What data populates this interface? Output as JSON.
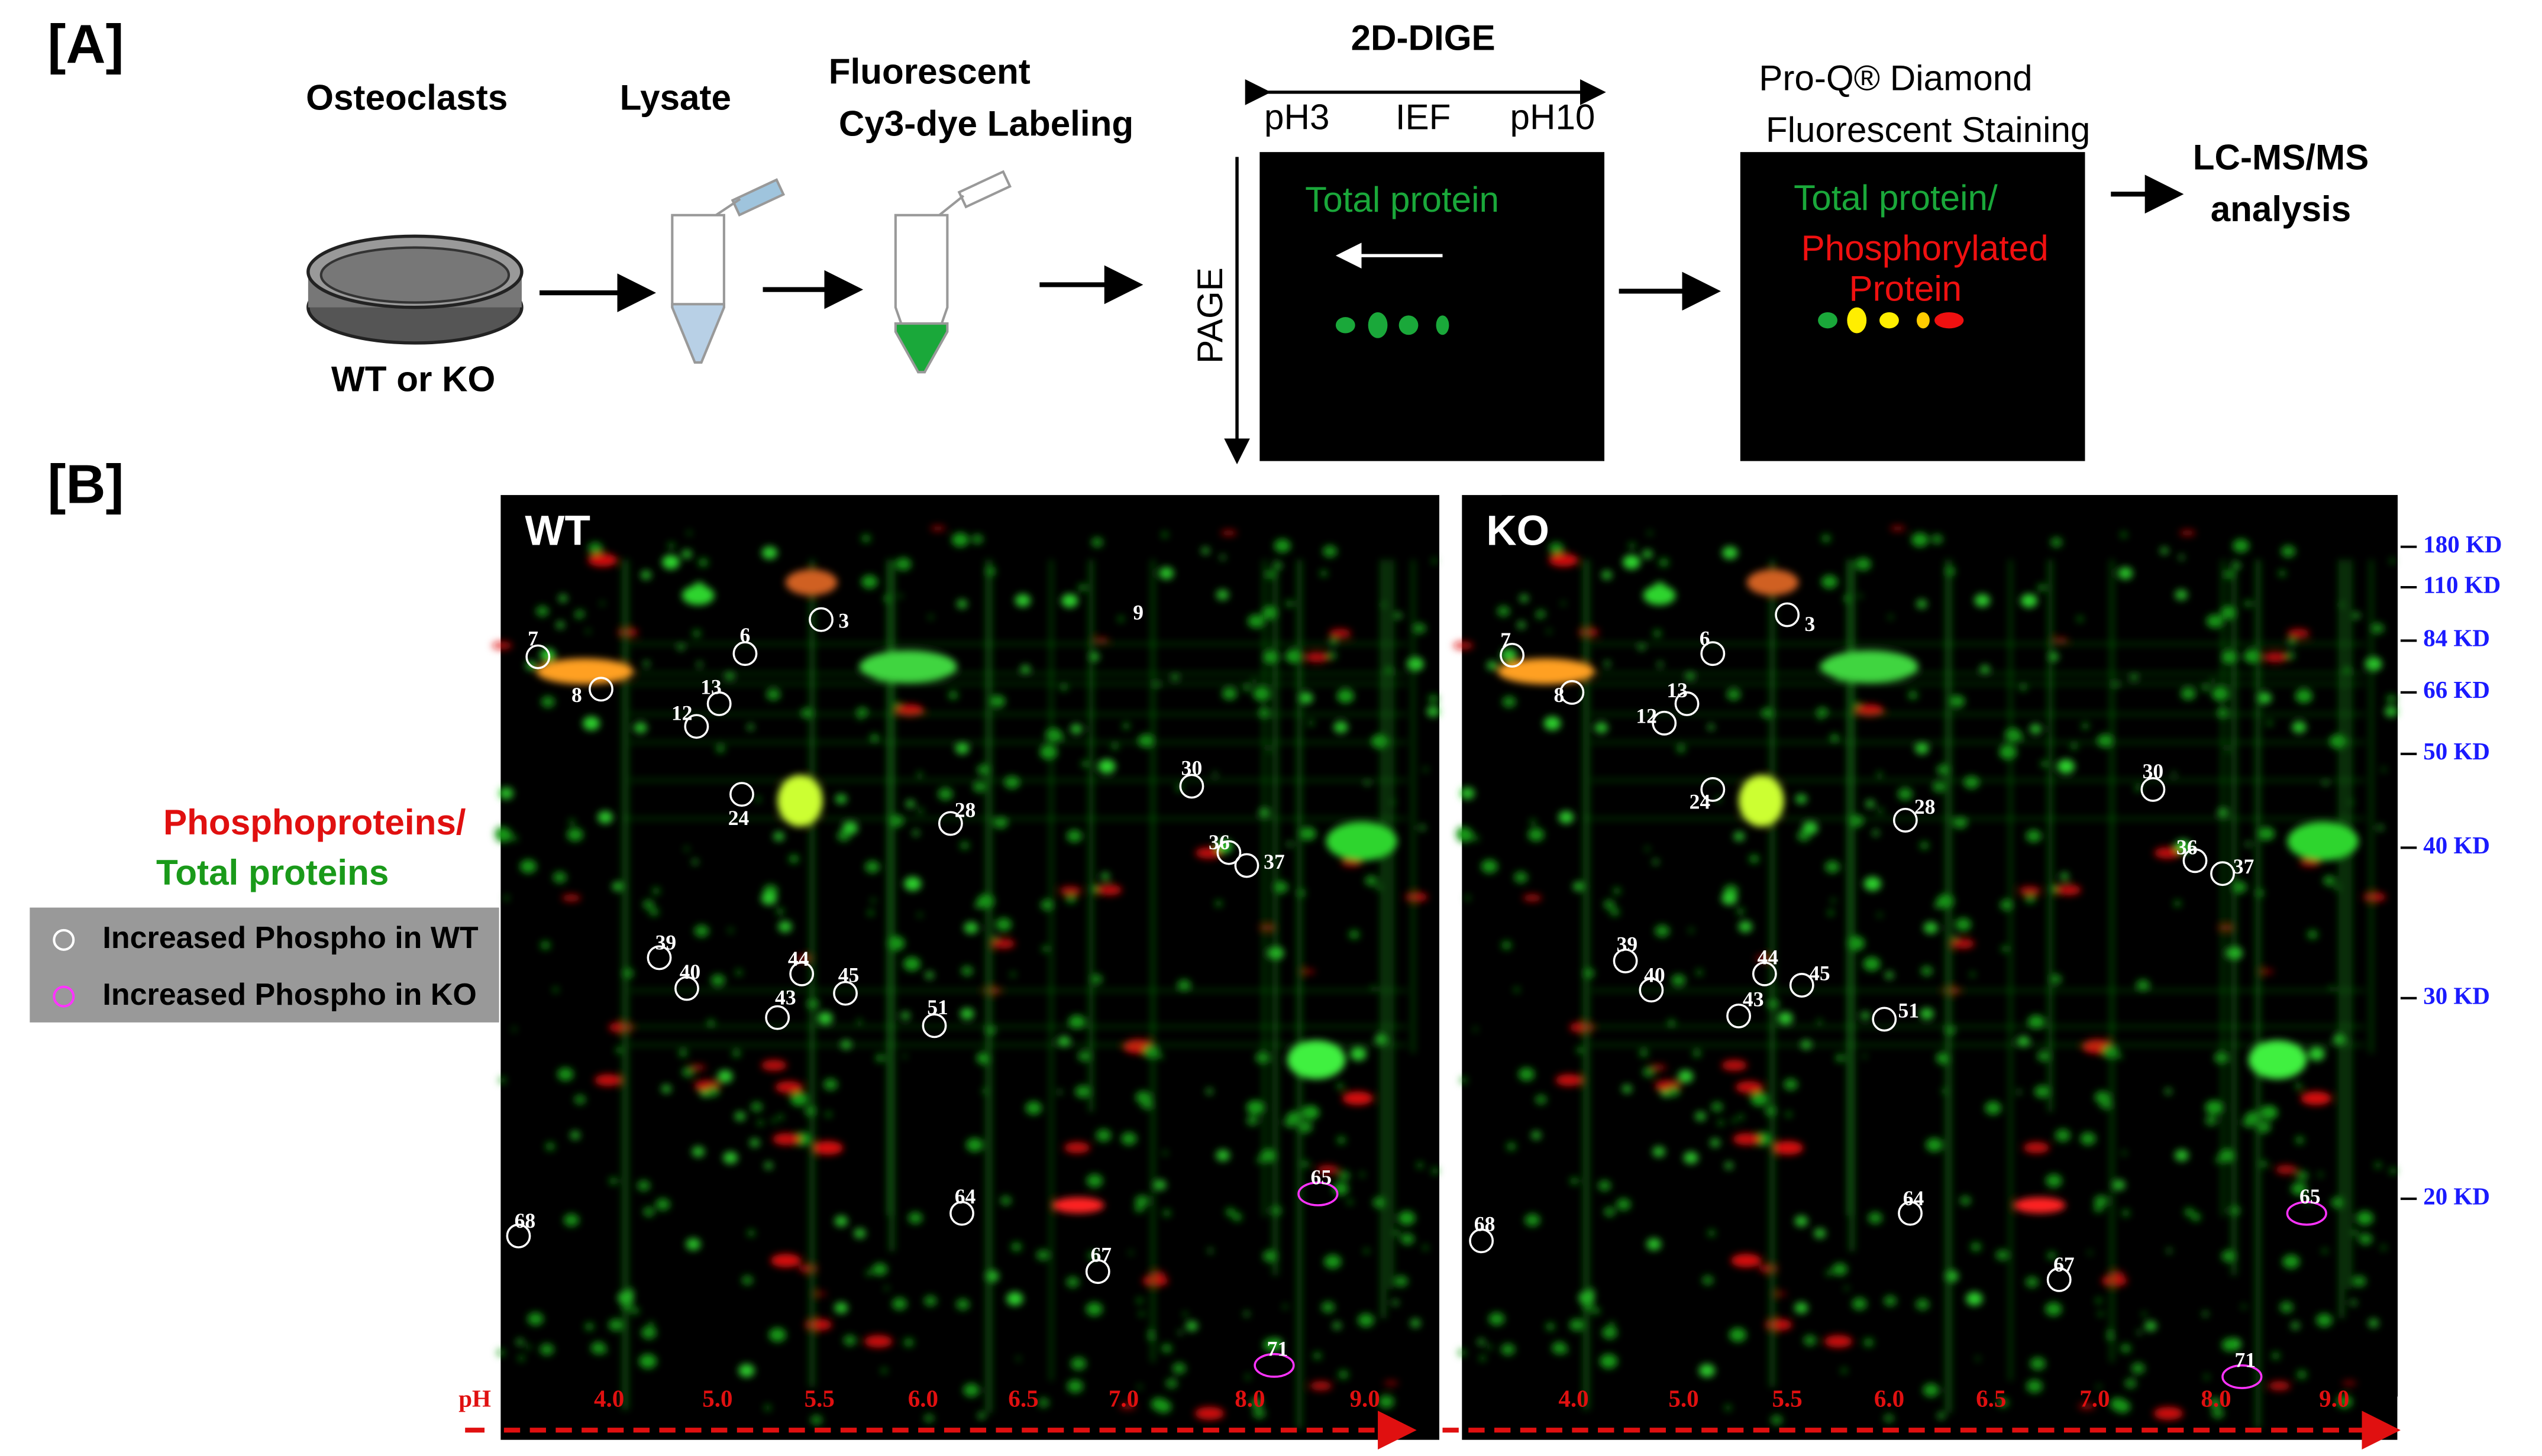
{
  "panel_a": {
    "label": "[A]",
    "step1": "Osteoclasts",
    "sample": "WT or KO",
    "step2": "Lysate",
    "step3": [
      "Fluorescent",
      "Cy3-dye Labeling"
    ],
    "dige_title": "2D-DIGE",
    "ph_start": "pH3",
    "ief": "IEF",
    "ph_end": "pH10",
    "page": "PAGE",
    "gel1_text": "Total protein",
    "staining": [
      "Pro-Q® Diamond",
      "Fluorescent Staining"
    ],
    "gel2_text": [
      "Total protein/",
      "Phosphorylated",
      "Protein"
    ],
    "analysis": [
      "LC-MS/MS",
      "analysis"
    ]
  },
  "panel_b": {
    "label": "[B]",
    "legend_title": [
      "Phosphoproteins/",
      "Total proteins"
    ],
    "legend": [
      "Increased Phospho in WT",
      "Increased Phospho in KO"
    ],
    "gels": [
      {
        "name": "WT",
        "spots": [
          {
            "label": "3",
            "group": 0
          },
          {
            "label": "6",
            "group": 0
          },
          {
            "label": "7",
            "group": 0
          },
          {
            "label": "8",
            "group": 0
          },
          {
            "label": "9",
            "group": 0
          },
          {
            "label": "12",
            "group": 0
          },
          {
            "label": "13",
            "group": 0
          },
          {
            "label": "24",
            "group": 0
          },
          {
            "label": "28",
            "group": 0
          },
          {
            "label": "30",
            "group": 0
          },
          {
            "label": "36",
            "group": 0
          },
          {
            "label": "37",
            "group": 0
          },
          {
            "label": "39",
            "group": 0
          },
          {
            "label": "40",
            "group": 0
          },
          {
            "label": "43",
            "group": 0
          },
          {
            "label": "44",
            "group": 0
          },
          {
            "label": "45",
            "group": 0
          },
          {
            "label": "51",
            "group": 0
          },
          {
            "label": "64",
            "group": 0
          },
          {
            "label": "65",
            "group": 1
          },
          {
            "label": "67",
            "group": 0
          },
          {
            "label": "68",
            "group": 0
          },
          {
            "label": "71",
            "group": 1
          }
        ]
      },
      {
        "name": "KO",
        "spots": [
          {
            "label": "3",
            "group": 0
          },
          {
            "label": "6",
            "group": 0
          },
          {
            "label": "7",
            "group": 0
          },
          {
            "label": "8",
            "group": 0
          },
          {
            "label": "12",
            "group": 0
          },
          {
            "label": "13",
            "group": 0
          },
          {
            "label": "24",
            "group": 0
          },
          {
            "label": "28",
            "group": 0
          },
          {
            "label": "30",
            "group": 0
          },
          {
            "label": "36",
            "group": 0
          },
          {
            "label": "37",
            "group": 0
          },
          {
            "label": "39",
            "group": 0
          },
          {
            "label": "40",
            "group": 0
          },
          {
            "label": "43",
            "group": 0
          },
          {
            "label": "44",
            "group": 0
          },
          {
            "label": "45",
            "group": 0
          },
          {
            "label": "51",
            "group": 0
          },
          {
            "label": "64",
            "group": 0
          },
          {
            "label": "65",
            "group": 1
          },
          {
            "label": "67",
            "group": 0
          },
          {
            "label": "68",
            "group": 0
          },
          {
            "label": "71",
            "group": 1
          }
        ]
      }
    ],
    "mw_markers": [
      "180 KD",
      "110 KD",
      "84 KD",
      "66 KD",
      "50 KD",
      "40 KD",
      "30 KD",
      "20 KD"
    ],
    "ph_axis_label": "pH",
    "ph_values": [
      "4.0",
      "5.0",
      "5.5",
      "6.0",
      "6.5",
      "7.0",
      "8.0",
      "9.0"
    ]
  }
}
